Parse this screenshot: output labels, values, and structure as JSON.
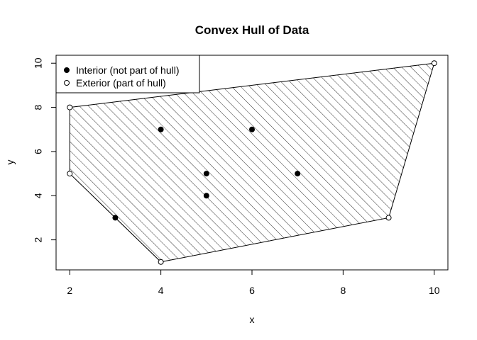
{
  "chart_data": {
    "type": "scatter",
    "title": "Convex Hull of Data",
    "xlabel": "x",
    "ylabel": "y",
    "xlim": [
      1.7,
      10.3
    ],
    "ylim": [
      0.64,
      10.36
    ],
    "x_ticks": [
      2,
      4,
      6,
      8,
      10
    ],
    "y_ticks": [
      2,
      4,
      6,
      8,
      10
    ],
    "grid": false,
    "legend_position": "top-left",
    "hull_fill": "diagonal-hatch",
    "series": [
      {
        "name": "Interior (not part of hull)",
        "marker": "filled-circle",
        "points": [
          [
            3,
            3
          ],
          [
            4,
            7
          ],
          [
            5,
            5
          ],
          [
            5,
            4
          ],
          [
            6,
            7
          ],
          [
            7,
            5
          ]
        ]
      },
      {
        "name": "Exterior (part of hull)",
        "marker": "open-circle",
        "points": [
          [
            2,
            8
          ],
          [
            2,
            5
          ],
          [
            4,
            1
          ],
          [
            9,
            3
          ],
          [
            10,
            10
          ]
        ]
      }
    ],
    "hull_polygon": [
      [
        2,
        8
      ],
      [
        2,
        5
      ],
      [
        4,
        1
      ],
      [
        9,
        3
      ],
      [
        10,
        10
      ]
    ],
    "colors": {
      "ink": "#000000",
      "background": "#ffffff"
    }
  }
}
